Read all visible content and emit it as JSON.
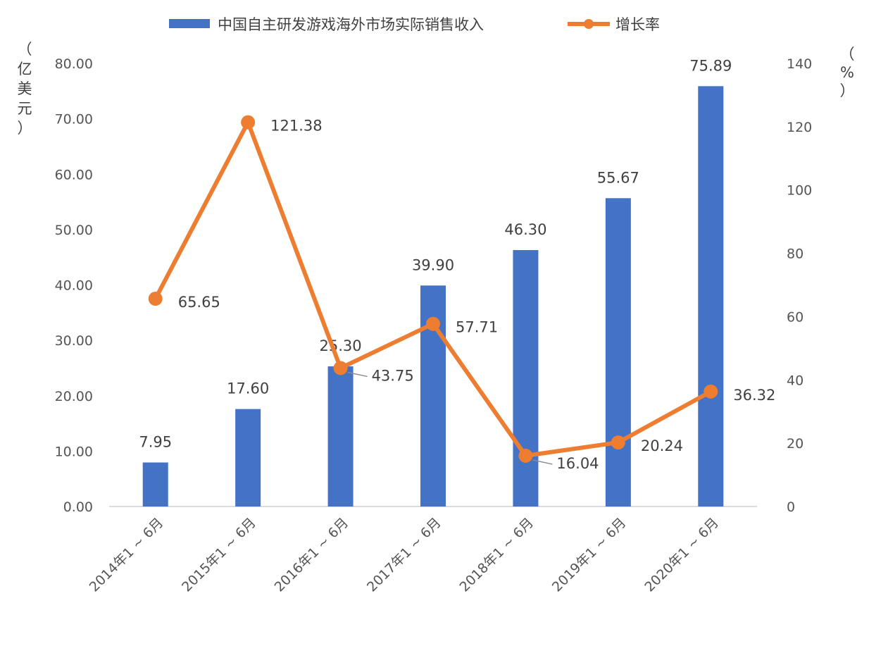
{
  "chart_data": {
    "type": "bar",
    "categories": [
      "2014年1 ~ 6月",
      "2015年1 ~ 6月",
      "2016年1 ~ 6月",
      "2017年1 ~ 6月",
      "2018年1 ~ 6月",
      "2019年1 ~ 6月",
      "2020年1 ~ 6月"
    ],
    "series": [
      {
        "name": "中国自主研发游戏海外市场实际销售收入",
        "type": "bar",
        "axis": "left",
        "color": "#4472C4",
        "values": [
          7.95,
          17.6,
          25.3,
          39.9,
          46.3,
          55.67,
          75.89
        ],
        "labels": [
          "7.95",
          "17.60",
          "25.30",
          "39.90",
          "46.30",
          "55.67",
          "75.89"
        ]
      },
      {
        "name": "增长率",
        "type": "line",
        "axis": "right",
        "color": "#ED7D31",
        "values": [
          65.65,
          121.38,
          43.75,
          57.71,
          16.04,
          20.24,
          36.32
        ],
        "labels": [
          "65.65",
          "121.38",
          "43.75",
          "57.71",
          "16.04",
          "20.24",
          "36.32"
        ]
      }
    ],
    "y_left": {
      "label": [
        "（",
        "亿",
        "美",
        "元",
        "）"
      ],
      "range": [
        0,
        80
      ],
      "ticks": [
        "0.00",
        "10.00",
        "20.00",
        "30.00",
        "40.00",
        "50.00",
        "60.00",
        "70.00",
        "80.00"
      ]
    },
    "y_right": {
      "label": [
        "（",
        "%",
        "）"
      ],
      "range": [
        0,
        140
      ],
      "ticks": [
        "0",
        "20",
        "40",
        "60",
        "80",
        "100",
        "120",
        "140"
      ]
    },
    "grid": false,
    "legend": "top"
  }
}
